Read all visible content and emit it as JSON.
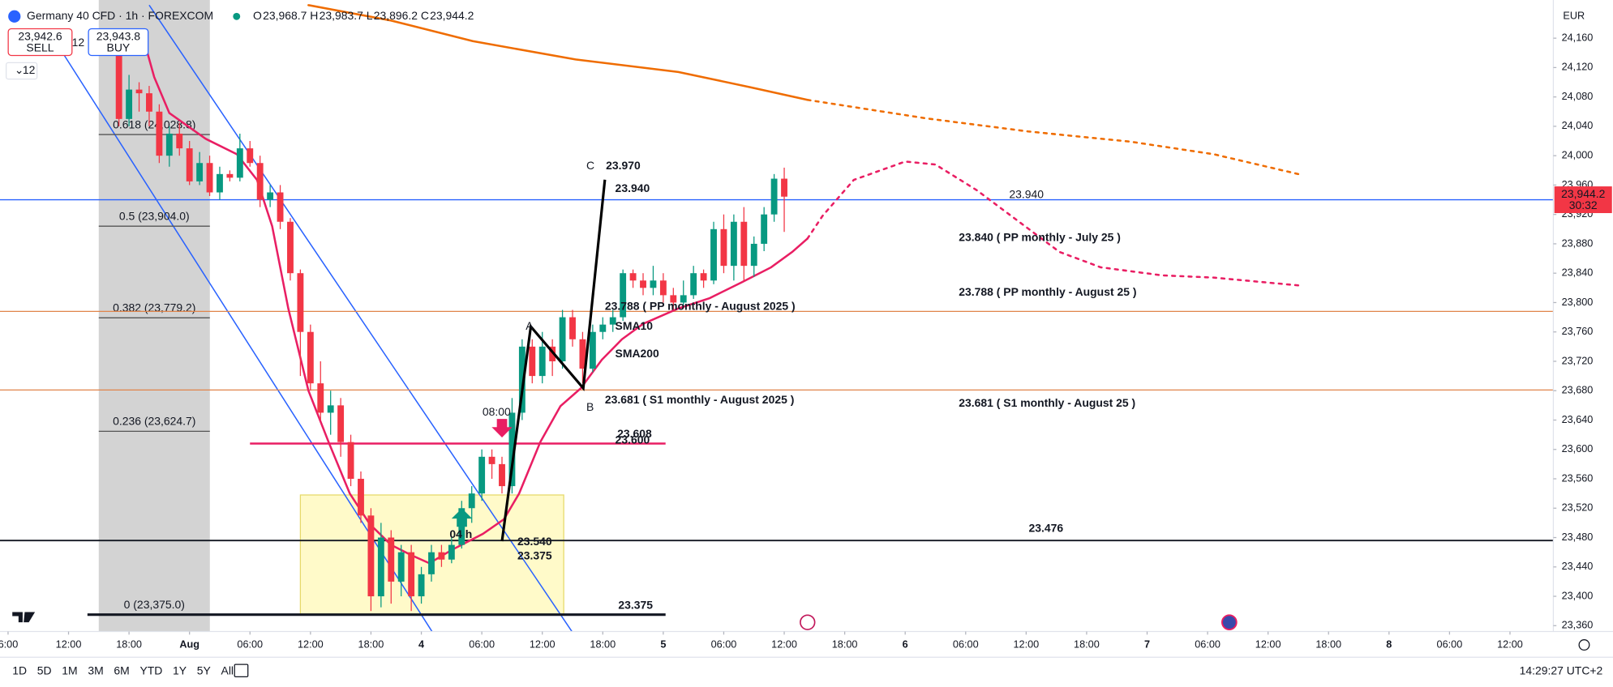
{
  "header": {
    "symbol": "Germany 40 CFD · 1h · FOREXCOM",
    "ohlc": [
      {
        "key": "O",
        "value": "23,968.7"
      },
      {
        "key": "H",
        "value": "23,983.7"
      },
      {
        "key": "L",
        "value": "23,896.2"
      },
      {
        "key": "C",
        "value": "23,944.2"
      }
    ],
    "sell_price": "23,942.6",
    "sell_label": "SELL",
    "spread": "12",
    "buy_price": "23,943.8",
    "buy_label": "BUY",
    "quantity": "12",
    "currency": "EUR",
    "price_tag": "23,944.2",
    "countdown": "30:32"
  },
  "toolbar": {
    "ranges": [
      "1D",
      "5D",
      "1M",
      "3M",
      "6M",
      "YTD",
      "1Y",
      "5Y",
      "All"
    ],
    "clock": "14:29:27 UTC+2"
  },
  "chart_data": {
    "type": "candlestick",
    "x": [
      11,
      12,
      13,
      14,
      15,
      16,
      17,
      18,
      19,
      20,
      21,
      22,
      23,
      24,
      25,
      26,
      27,
      28,
      29,
      30,
      31,
      32,
      33,
      34,
      35,
      36,
      37,
      38,
      39,
      40,
      41,
      42,
      43,
      44,
      45,
      46,
      47,
      48,
      49,
      50,
      51,
      52,
      53,
      54,
      55,
      56,
      57,
      58,
      59,
      60,
      61,
      62,
      63,
      64,
      65,
      66,
      67,
      68,
      69,
      70,
      71,
      72,
      73,
      74,
      75,
      76,
      77
    ],
    "open": [
      24150,
      24050,
      24090,
      24085,
      24060,
      24000,
      24030,
      24010,
      23965,
      23990,
      23950,
      23975,
      23970,
      24010,
      23990,
      23940,
      23950,
      23910,
      23840,
      23760,
      23690,
      23650,
      23660,
      23610,
      23560,
      23510,
      23400,
      23480,
      23420,
      23460,
      23400,
      23430,
      23460,
      23450,
      23470,
      23520,
      23540,
      23590,
      23580,
      23550,
      23650,
      23740,
      23700,
      23740,
      23720,
      23780,
      23750,
      23710,
      23760,
      23770,
      23780,
      23840,
      23830,
      23820,
      23830,
      23810,
      23800,
      23810,
      23840,
      23830,
      23900,
      23850,
      23910,
      23850,
      23880,
      23920,
      23968.7
    ],
    "high": [
      24160,
      24110,
      24100,
      24095,
      24070,
      24040,
      24045,
      24020,
      24005,
      24000,
      23985,
      23980,
      24030,
      24020,
      24000,
      23960,
      23960,
      23915,
      23845,
      23770,
      23720,
      23680,
      23670,
      23620,
      23570,
      23520,
      23500,
      23490,
      23470,
      23470,
      23440,
      23470,
      23470,
      23480,
      23530,
      23550,
      23600,
      23600,
      23590,
      23670,
      23750,
      23750,
      23760,
      23750,
      23790,
      23790,
      23760,
      23770,
      23780,
      23790,
      23845,
      23845,
      23840,
      23850,
      23840,
      23820,
      23830,
      23850,
      23845,
      23910,
      23920,
      23920,
      23930,
      23890,
      23930,
      23975,
      23983.7
    ],
    "low": [
      24040,
      24040,
      24060,
      24040,
      23990,
      23985,
      24000,
      23960,
      23960,
      23945,
      23940,
      23965,
      23965,
      23985,
      23930,
      23930,
      23900,
      23830,
      23700,
      23680,
      23640,
      23620,
      23590,
      23550,
      23500,
      23380,
      23385,
      23390,
      23400,
      23380,
      23390,
      23420,
      23440,
      23445,
      23465,
      23500,
      23530,
      23560,
      23540,
      23540,
      23640,
      23690,
      23690,
      23700,
      23710,
      23740,
      23690,
      23705,
      23750,
      23760,
      23775,
      23820,
      23810,
      23810,
      23800,
      23790,
      23795,
      23805,
      23820,
      23825,
      23840,
      23830,
      23830,
      23835,
      23870,
      23910,
      23896.2
    ],
    "close": [
      24050,
      24090,
      24085,
      24060,
      24000,
      24030,
      24010,
      23965,
      23990,
      23950,
      23975,
      23970,
      24010,
      23990,
      23940,
      23950,
      23910,
      23840,
      23760,
      23690,
      23650,
      23660,
      23610,
      23560,
      23510,
      23400,
      23480,
      23420,
      23460,
      23400,
      23430,
      23460,
      23450,
      23470,
      23520,
      23540,
      23590,
      23580,
      23550,
      23650,
      23740,
      23700,
      23740,
      23720,
      23780,
      23750,
      23710,
      23760,
      23770,
      23780,
      23840,
      23830,
      23820,
      23830,
      23810,
      23800,
      23810,
      23840,
      23830,
      23900,
      23850,
      23910,
      23850,
      23880,
      23920,
      23968.7,
      23944.2
    ],
    "up_color": "#089981",
    "down_color": "#f23645",
    "xlim": [
      -0.8,
      153.3
    ],
    "ylim": [
      23352,
      24212
    ],
    "xticks": [
      {
        "value": 0,
        "label": "6:00"
      },
      {
        "value": 6,
        "label": "12:00"
      },
      {
        "value": 12,
        "label": "18:00"
      },
      {
        "value": 18,
        "label": "Aug"
      },
      {
        "value": 24,
        "label": "06:00"
      },
      {
        "value": 30,
        "label": "12:00"
      },
      {
        "value": 36,
        "label": "18:00"
      },
      {
        "value": 41,
        "label": "4"
      },
      {
        "value": 47,
        "label": "06:00"
      },
      {
        "value": 53,
        "label": "12:00"
      },
      {
        "value": 59,
        "label": "18:00"
      },
      {
        "value": 65,
        "label": "5"
      },
      {
        "value": 71,
        "label": "06:00"
      },
      {
        "value": 77,
        "label": "12:00"
      },
      {
        "value": 83,
        "label": "18:00"
      },
      {
        "value": 89,
        "label": "6"
      },
      {
        "value": 95,
        "label": "06:00"
      },
      {
        "value": 101,
        "label": "12:00"
      },
      {
        "value": 107,
        "label": "18:00"
      },
      {
        "value": 113,
        "label": "7"
      },
      {
        "value": 119,
        "label": "06:00"
      },
      {
        "value": 125,
        "label": "12:00"
      },
      {
        "value": 131,
        "label": "18:00"
      },
      {
        "value": 137,
        "label": "8"
      },
      {
        "value": 143,
        "label": "06:00"
      },
      {
        "value": 149,
        "label": "12:00"
      }
    ],
    "yticks": [
      {
        "value": 24160,
        "label": "24,160"
      },
      {
        "value": 24120,
        "label": "24,120"
      },
      {
        "value": 24080,
        "label": "24,080"
      },
      {
        "value": 24040,
        "label": "24,040"
      },
      {
        "value": 24000,
        "label": "24,000"
      },
      {
        "value": 23960,
        "label": "23,960"
      },
      {
        "value": 23920,
        "label": "23,920"
      },
      {
        "value": 23880,
        "label": "23,880"
      },
      {
        "value": 23840,
        "label": "23,840"
      },
      {
        "value": 23800,
        "label": "23,800"
      },
      {
        "value": 23760,
        "label": "23,760"
      },
      {
        "value": 23720,
        "label": "23,720"
      },
      {
        "value": 23680,
        "label": "23,680"
      },
      {
        "value": 23640,
        "label": "23,640"
      },
      {
        "value": 23600,
        "label": "23,600"
      },
      {
        "value": 23560,
        "label": "23,560"
      },
      {
        "value": 23520,
        "label": "23,520"
      },
      {
        "value": 23480,
        "label": "23,480"
      },
      {
        "value": 23440,
        "label": "23,440"
      },
      {
        "value": 23400,
        "label": "23,400"
      },
      {
        "value": 23360,
        "label": "23,360"
      }
    ],
    "lines": [
      {
        "color": "#e91e63",
        "dash": false,
        "x": [
          13.5,
          14.5,
          16,
          19.6,
          22.7,
          24.7,
          26.2,
          27.8,
          29.8,
          31.8,
          33.9,
          35.9,
          38,
          40,
          41.8,
          44,
          47.1,
          49.2,
          50.7,
          52.8,
          54.8,
          56.8,
          58.9,
          60.9,
          63,
          66.5,
          69.6,
          72.7,
          75.7,
          77.8,
          79.3
        ],
        "values": [
          24156,
          24107,
          24058,
          24023,
          24002,
          23967,
          23904,
          23792,
          23680,
          23610,
          23540,
          23498,
          23470,
          23456,
          23445,
          23463,
          23485,
          23505,
          23540,
          23610,
          23659,
          23683,
          23722,
          23750,
          23771,
          23792,
          23806,
          23827,
          23848,
          23869,
          23887
        ]
      },
      {
        "color": "#e91e63",
        "dash": true,
        "x": [
          79.3,
          80.8,
          83.9,
          89,
          92,
          96.1,
          100.2,
          104.3,
          108.4,
          114.5,
          119.6,
          128.3
        ],
        "values": [
          23887,
          23918,
          23967,
          23992,
          23988,
          23953,
          23911,
          23869,
          23848,
          23837,
          23834,
          23823
        ]
      },
      {
        "color": "#ef6c00",
        "dash": false,
        "x": [
          29.8,
          38,
          46.1,
          56.3,
          66.5,
          73.7,
          79.3
        ],
        "values": [
          24205,
          24184,
          24156,
          24131,
          24114,
          24093,
          24076
        ]
      },
      {
        "color": "#ef6c00",
        "dash": true,
        "x": [
          79.3,
          91,
          101.2,
          111.4,
          119.6,
          128.3
        ],
        "values": [
          24076,
          24051,
          24033,
          24019,
          24002,
          23974
        ]
      }
    ],
    "levels": [
      {
        "value": 23940,
        "color": "#2962ff"
      },
      {
        "value": 23788,
        "color": "#e0844a"
      },
      {
        "value": 23681,
        "color": "#e0844a"
      },
      {
        "value": 23476,
        "color": "#131722"
      },
      {
        "value": 23375,
        "color": "#131722"
      },
      {
        "value": 23608,
        "color": "#e91e63"
      }
    ],
    "fib": [
      {
        "value": 24028.8,
        "label": "0.618 (24,028.8)"
      },
      {
        "value": 23904.0,
        "label": "0.5 (23,904.0)"
      },
      {
        "value": 23779.2,
        "label": "0.382 (23,779.2)"
      },
      {
        "value": 23624.7,
        "label": "0.236 (23,624.7)"
      },
      {
        "value": 23375.0,
        "label": "0 (23,375.0)"
      }
    ],
    "annotations": [
      "C",
      "23.970",
      "23.940",
      "A",
      "B",
      "23.788 ( PP monthly - August 2025 )",
      "SMA10",
      "SMA200",
      "23.681 ( S1 monthly - August 2025 )",
      "23.608",
      "23.600",
      "08:00",
      "04 h",
      "23.540",
      "23.375",
      "23.375",
      "23.840 ( PP monthly - July 25 )",
      "23.940",
      "23.788 ( PP monthly - August 25 )",
      "23.681 ( S1 monthly - August 25 )",
      "23.476"
    ]
  }
}
